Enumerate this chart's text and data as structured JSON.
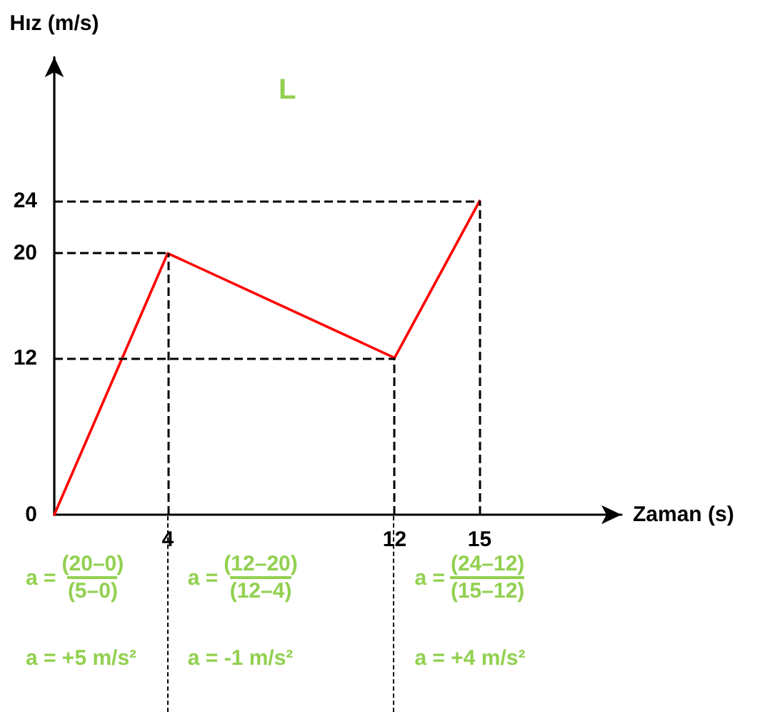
{
  "chart_data": {
    "type": "line",
    "title": "L",
    "xlabel": "Zaman (s)",
    "ylabel": "Hız (m/s)",
    "x": [
      0,
      4,
      12,
      15
    ],
    "values": [
      0,
      20,
      12,
      24
    ],
    "color": "#ff0000",
    "xlim": [
      0,
      20
    ],
    "ylim": [
      0,
      35
    ],
    "xticks": [
      4,
      12,
      15
    ],
    "yticks": [
      0,
      12,
      20,
      24
    ],
    "grid": false,
    "marker": "none",
    "line_style": "solid",
    "ref_lines": [
      {
        "axis": "x",
        "value": 4,
        "color": "#000000",
        "line_style": "dashed"
      },
      {
        "axis": "x",
        "value": 12,
        "color": "#000000",
        "line_style": "dashed"
      },
      {
        "axis": "x",
        "value": 15,
        "color": "#000000",
        "line_style": "dashed"
      },
      {
        "axis": "y",
        "value": 20,
        "color": "#000000",
        "line_style": "dashed"
      },
      {
        "axis": "y",
        "value": 12,
        "color": "#000000",
        "line_style": "dashed"
      },
      {
        "axis": "y",
        "value": 24,
        "color": "#000000",
        "line_style": "dashed"
      }
    ],
    "annotations": [
      "a =",
      "(20–0)",
      "(5–0)",
      "a =",
      "(12–20)",
      "(12–4)",
      "a =",
      "(24–12)",
      "(15–12)",
      "a = +5 m/s²",
      "a = -1 m/s²",
      "a = +4 m/s²"
    ]
  }
}
